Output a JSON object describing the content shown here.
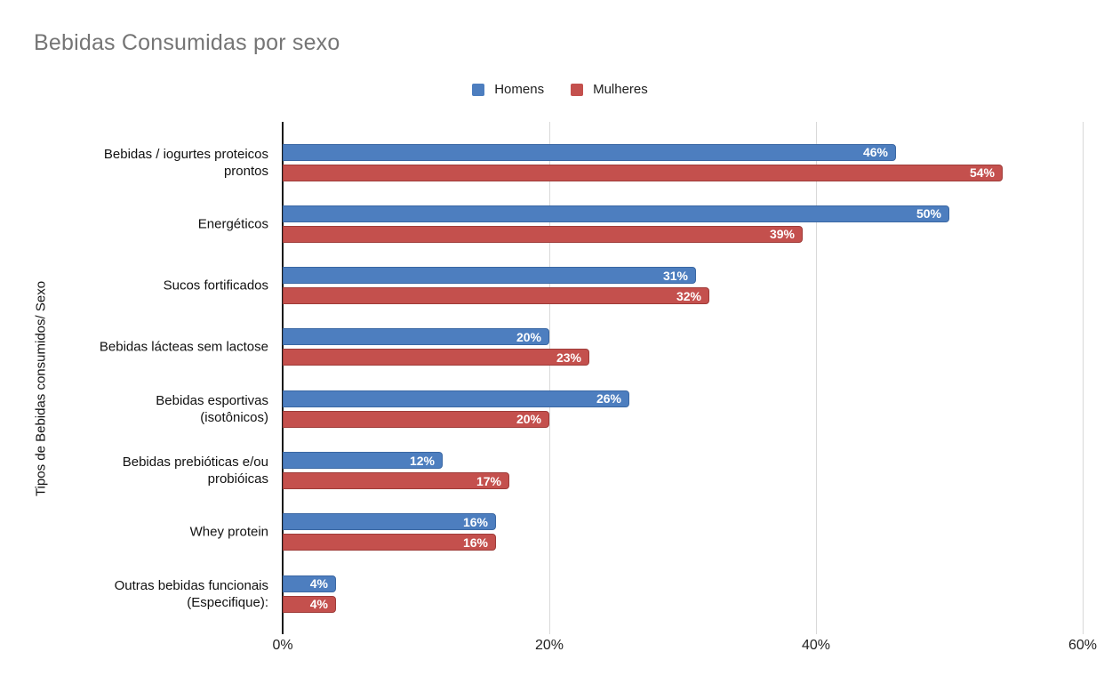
{
  "title": "Bebidas Consumidas por sexo",
  "y_axis_title": "Tipos de Bebidas consumidos/ Sexo",
  "legend": [
    {
      "label": "Homens",
      "color": "#4d7ebf"
    },
    {
      "label": "Mulheres",
      "color": "#c4504d"
    }
  ],
  "colors": {
    "homens_fill": "#4d7ebf",
    "homens_border": "#3a67a3",
    "mulheres_fill": "#c4504d",
    "mulheres_border": "#9e3b38",
    "title_gray": "#757575",
    "gridline": "#d9d9d9",
    "axis": "#1a1a1a",
    "data_label": "#ffffff"
  },
  "chart_data": {
    "type": "bar",
    "orientation": "horizontal",
    "title": "Bebidas Consumidas por sexo",
    "xlabel": "",
    "ylabel": "Tipos de Bebidas consumidos/ Sexo",
    "xlim": [
      0,
      60
    ],
    "grid": true,
    "legend_position": "top-center",
    "data_label_format": "percent-inside-end",
    "x_ticks": [
      {
        "value": 0,
        "label": "0%"
      },
      {
        "value": 20,
        "label": "20%"
      },
      {
        "value": 40,
        "label": "40%"
      },
      {
        "value": 60,
        "label": "60%"
      }
    ],
    "categories": [
      "Bebidas / iogurtes proteicos\nprontos",
      "Energéticos",
      "Sucos fortificados",
      "Bebidas lácteas sem lactose",
      "Bebidas esportivas\n(isotônicos)",
      "Bebidas prebióticas e/ou\nprobióicas",
      "Whey protein",
      "Outras bebidas funcionais\n(Especifique):"
    ],
    "series": [
      {
        "name": "Homens",
        "fill": "#4d7ebf",
        "border": "#3a67a3",
        "values": [
          46,
          50,
          31,
          20,
          26,
          12,
          16,
          4
        ],
        "labels": [
          "46%",
          "50%",
          "31%",
          "20%",
          "26%",
          "12%",
          "16%",
          "4%"
        ]
      },
      {
        "name": "Mulheres",
        "fill": "#c4504d",
        "border": "#9e3b38",
        "values": [
          54,
          39,
          32,
          23,
          20,
          17,
          16,
          4
        ],
        "labels": [
          "54%",
          "39%",
          "32%",
          "23%",
          "20%",
          "17%",
          "16%",
          "4%"
        ]
      }
    ]
  }
}
